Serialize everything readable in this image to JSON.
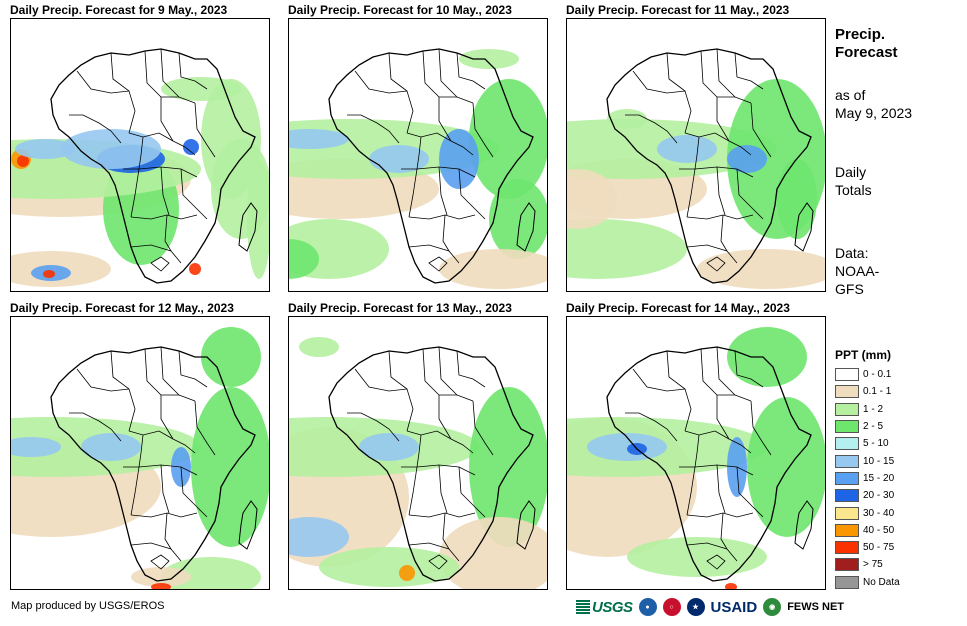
{
  "panels": [
    {
      "title": "Daily Precip. Forecast for 9 May., 2023"
    },
    {
      "title": "Daily Precip. Forecast for 10 May., 2023"
    },
    {
      "title": "Daily Precip. Forecast for 11 May., 2023"
    },
    {
      "title": "Daily Precip. Forecast for 12 May., 2023"
    },
    {
      "title": "Daily Precip. Forecast for 13 May., 2023"
    },
    {
      "title": "Daily Precip. Forecast for 14 May., 2023"
    }
  ],
  "sidebar": {
    "title_line1": "Precip.",
    "title_line2": "Forecast",
    "asof_line1": "as of",
    "asof_line2": "May 9, 2023",
    "totals_line1": "Daily",
    "totals_line2": "Totals",
    "data_line1": "Data:",
    "data_line2": "NOAA-",
    "data_line3": "GFS"
  },
  "legend": {
    "title": "PPT (mm)",
    "items": [
      {
        "label": "0 - 0.1",
        "color": "#ffffff"
      },
      {
        "label": "0.1 - 1",
        "color": "#f0dcbe"
      },
      {
        "label": "1 - 2",
        "color": "#b4f0a0"
      },
      {
        "label": "2 - 5",
        "color": "#6ee66e"
      },
      {
        "label": "5 - 10",
        "color": "#b4f0f0"
      },
      {
        "label": "10 - 15",
        "color": "#96c8f0"
      },
      {
        "label": "15 - 20",
        "color": "#5aa0f0"
      },
      {
        "label": "20 - 30",
        "color": "#1e64e6"
      },
      {
        "label": "30 - 40",
        "color": "#fae68c"
      },
      {
        "label": "40 - 50",
        "color": "#fa9600"
      },
      {
        "label": "50 - 75",
        "color": "#fa3200"
      },
      {
        "label": "> 75",
        "color": "#a01e1e"
      },
      {
        "label": "No Data",
        "color": "#969696"
      }
    ]
  },
  "footer": {
    "credit": "Map produced by USGS/EROS",
    "usgs": "USGS",
    "usaid": "USAID",
    "fews": "FEWS NET"
  }
}
